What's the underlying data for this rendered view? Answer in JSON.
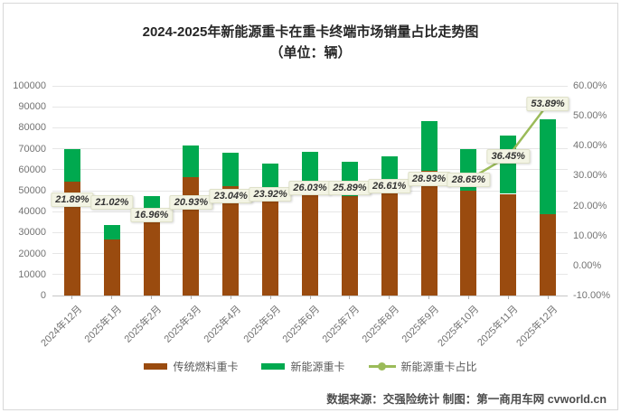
{
  "chart_data": {
    "type": "bar",
    "subtype": "stacked-bars-with-percentage-line",
    "title": "2024-2025年新能源重卡在重卡终端市场销量占比走势图",
    "subtitle": "（单位：辆）",
    "categories": [
      "2024年12月",
      "2025年1月",
      "2025年2月",
      "2025年3月",
      "2025年4月",
      "2025年5月",
      "2025年6月",
      "2025年7月",
      "2025年8月",
      "2025年9月",
      "2025年10月",
      "2025年11月",
      "2025年12月"
    ],
    "totals_estimated": [
      69700,
      33600,
      47500,
      71500,
      68000,
      62800,
      68500,
      63800,
      66400,
      83400,
      69900,
      76300,
      84000
    ],
    "series": [
      {
        "name": "传统燃料重卡",
        "color": "#9A4B0F",
        "values": [
          54443,
          26537,
          39444,
          56535,
          52333,
          47778,
          50669,
          47282,
          48731,
          59272,
          49874,
          48489,
          38732
        ]
      },
      {
        "name": "新能源重卡",
        "color": "#00A94F",
        "values": [
          15257,
          7063,
          8056,
          14965,
          15667,
          15022,
          17831,
          16518,
          17669,
          24128,
          20026,
          27811,
          45268
        ]
      }
    ],
    "line_series": {
      "name": "新能源重卡占比",
      "color": "#9BBB59",
      "values": [
        21.89,
        21.02,
        16.96,
        20.93,
        23.04,
        23.92,
        26.03,
        25.89,
        26.61,
        28.93,
        28.65,
        36.45,
        53.89
      ],
      "labels": [
        "21.89%",
        "21.02%",
        "16.96%",
        "20.93%",
        "23.04%",
        "23.92%",
        "26.03%",
        "25.89%",
        "26.61%",
        "28.93%",
        "28.65%",
        "36.45%",
        "53.89%"
      ]
    },
    "left_axis": {
      "min": 0,
      "max": 100000,
      "step": 10000,
      "values": [
        100000,
        90000,
        80000,
        70000,
        60000,
        50000,
        40000,
        30000,
        20000,
        10000,
        0
      ],
      "labels": [
        "100000",
        "90000",
        "80000",
        "70000",
        "60000",
        "50000",
        "40000",
        "30000",
        "20000",
        "10000",
        "0"
      ]
    },
    "right_axis": {
      "min": -10,
      "max": 60,
      "step": 10,
      "values": [
        60,
        50,
        40,
        30,
        20,
        10,
        0,
        -10
      ],
      "labels": [
        "60.00%",
        "50.00%",
        "40.00%",
        "30.00%",
        "20.00%",
        "10.00%",
        "0.00%",
        "-10.00%"
      ]
    },
    "grid": true,
    "legend_position": "bottom"
  },
  "footer": {
    "text": "数据来源：交强险统计 制图：第一商用车网 cvworld.cn"
  },
  "colors": {
    "traditional": "#9A4B0F",
    "new_energy": "#00A94F",
    "share_line": "#9BBB59",
    "label_bg": "#F3F4E4",
    "grid": "#E6E6E6",
    "axis_text": "#737373",
    "legend_text": "#595959",
    "title_text": "#262626",
    "frame_border": "#D9D9D9",
    "footer_text": "#4D4D4D"
  }
}
